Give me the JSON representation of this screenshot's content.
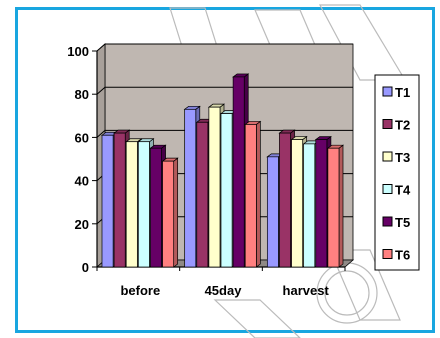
{
  "colors": {
    "frame_border": "#18a6e0",
    "plot_area": "#bfb7b1",
    "plot_side": "#a8a09a",
    "gridline": "#000000"
  },
  "chart_data": {
    "type": "bar",
    "bar_style": "3d-clustered",
    "title": "",
    "xlabel": "",
    "ylabel": "",
    "categories": [
      "before",
      "45day",
      "harvest"
    ],
    "ylim": [
      0,
      100
    ],
    "yticks": [
      0,
      20,
      40,
      60,
      80,
      100
    ],
    "grid": true,
    "legend_position": "right",
    "series": [
      {
        "name": "T1",
        "color": "#9999ff",
        "values": [
          61,
          73,
          51
        ]
      },
      {
        "name": "T2",
        "color": "#993366",
        "values": [
          62,
          67,
          62
        ]
      },
      {
        "name": "T3",
        "color": "#ffffcc",
        "values": [
          58,
          74,
          59
        ]
      },
      {
        "name": "T4",
        "color": "#ccffff",
        "values": [
          58,
          71,
          57
        ]
      },
      {
        "name": "T5",
        "color": "#660066",
        "values": [
          55,
          88,
          59
        ]
      },
      {
        "name": "T6",
        "color": "#ff8080",
        "values": [
          49,
          66,
          55
        ]
      }
    ]
  }
}
